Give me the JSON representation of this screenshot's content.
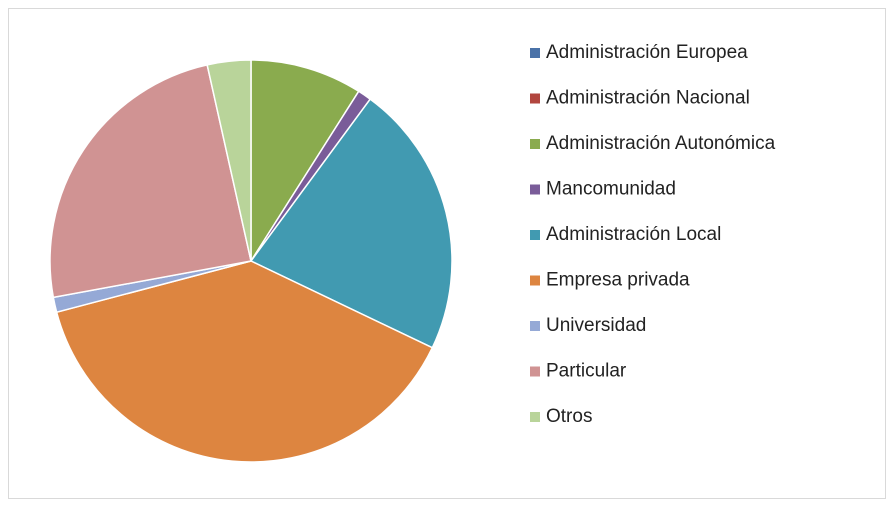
{
  "chart_data": {
    "type": "pie",
    "categories": [
      "Administración Europea",
      "Administración Nacional",
      "Administración Autonómica",
      "Mancomunidad",
      "Administración Local",
      "Empresa privada",
      "Universidad",
      "Particular",
      "Otros"
    ],
    "values": [
      0,
      0,
      9.0,
      1.1,
      22.0,
      38.8,
      1.2,
      24.4,
      3.5
    ],
    "colors": [
      "#4a72a8",
      "#b2463f",
      "#8aab4e",
      "#7a5c99",
      "#419ab1",
      "#dd8540",
      "#95a9d6",
      "#d09393",
      "#b9d49a"
    ],
    "legend": "right"
  }
}
